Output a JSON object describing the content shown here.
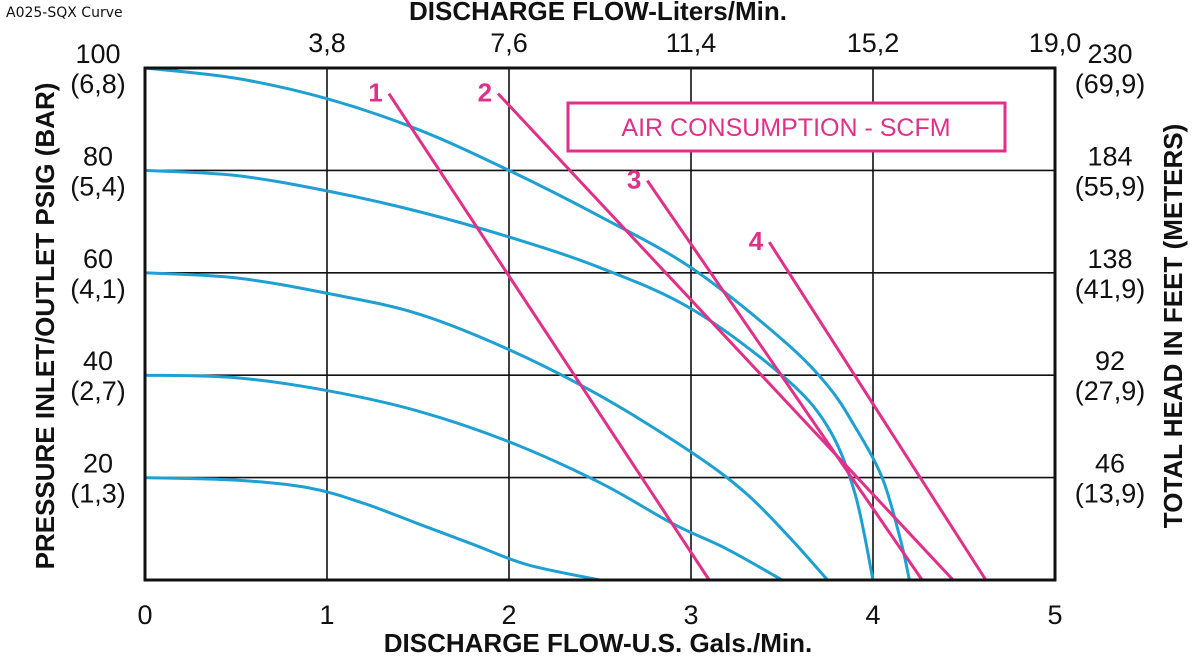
{
  "corner_label": "A025-SQX Curve",
  "chart_data": {
    "type": "line",
    "title": "",
    "xlabel": "DISCHARGE FLOW-U.S. Gals./Min.",
    "xlabel_top": "DISCHARGE FLOW-Liters/Min.",
    "ylabel": "PRESSURE INLET/OUTLET PSIG (BAR)",
    "ylabel_right": "TOTAL HEAD IN FEET (METERS)",
    "xlim": [
      0,
      5
    ],
    "ylim": [
      0,
      100
    ],
    "grid": true,
    "x_ticks": [
      "0",
      "1",
      "2",
      "3",
      "4",
      "5"
    ],
    "x_ticks_top": [
      "3,8",
      "7,6",
      "11,4",
      "15,2",
      "19,0"
    ],
    "y_ticks_left": [
      {
        "value": 100,
        "psig": "100",
        "bar": "(6,8)"
      },
      {
        "value": 80,
        "psig": "80",
        "bar": "(5,4)"
      },
      {
        "value": 60,
        "psig": "60",
        "bar": "(4,1)"
      },
      {
        "value": 40,
        "psig": "40",
        "bar": "(2,7)"
      },
      {
        "value": 20,
        "psig": "20",
        "bar": "(1,3)"
      }
    ],
    "y_ticks_right": [
      {
        "value": 100,
        "feet": "230",
        "meters": "(69,9)"
      },
      {
        "value": 80,
        "feet": "184",
        "meters": "(55,9)"
      },
      {
        "value": 60,
        "feet": "138",
        "meters": "(41,9)"
      },
      {
        "value": 40,
        "feet": "92",
        "meters": "(27,9)"
      },
      {
        "value": 20,
        "feet": "46",
        "meters": "(13,9)"
      }
    ],
    "air_box_label": "AIR CONSUMPTION - SCFM",
    "colors": {
      "performance": "#1ea0d2",
      "air": "#e0308a",
      "grid": "#111111"
    },
    "series": [
      {
        "x": [
          0,
          0.5,
          1,
          1.5,
          2,
          2.5,
          3,
          3.5,
          3.75,
          3.9,
          4.05,
          4.15,
          4.2
        ],
        "y": [
          100,
          98,
          94,
          88,
          80,
          71,
          61,
          47,
          38,
          30,
          20,
          8,
          0
        ]
      },
      {
        "x": [
          0,
          0.5,
          1,
          1.5,
          2,
          2.5,
          3,
          3.5,
          3.75,
          3.9,
          4.0
        ],
        "y": [
          80,
          79,
          76,
          72,
          67,
          61,
          53,
          40,
          30,
          17,
          0
        ]
      },
      {
        "x": [
          0,
          0.5,
          1,
          1.5,
          2,
          2.5,
          3,
          3.3,
          3.55,
          3.75
        ],
        "y": [
          60,
          59,
          56,
          52,
          45,
          36,
          25,
          17,
          8,
          0
        ]
      },
      {
        "x": [
          0,
          0.5,
          1,
          1.5,
          2,
          2.5,
          2.9,
          3.2,
          3.5
        ],
        "y": [
          40,
          39.5,
          37,
          33,
          27,
          19,
          11,
          6,
          0
        ]
      },
      {
        "x": [
          0,
          0.5,
          0.9,
          1.2,
          1.5,
          1.8,
          2.1,
          2.5
        ],
        "y": [
          20,
          19.5,
          18,
          15,
          11,
          7,
          3,
          0
        ]
      }
    ],
    "air_lines": [
      {
        "label": "1",
        "x": [
          1.34,
          3.1
        ],
        "y": [
          95,
          0
        ]
      },
      {
        "label": "2",
        "x": [
          1.94,
          4.44
        ],
        "y": [
          95,
          0
        ]
      },
      {
        "label": "3",
        "x": [
          2.76,
          4.27
        ],
        "y": [
          78,
          0
        ]
      },
      {
        "label": "4",
        "x": [
          3.43,
          4.62
        ],
        "y": [
          66,
          0
        ]
      }
    ]
  }
}
